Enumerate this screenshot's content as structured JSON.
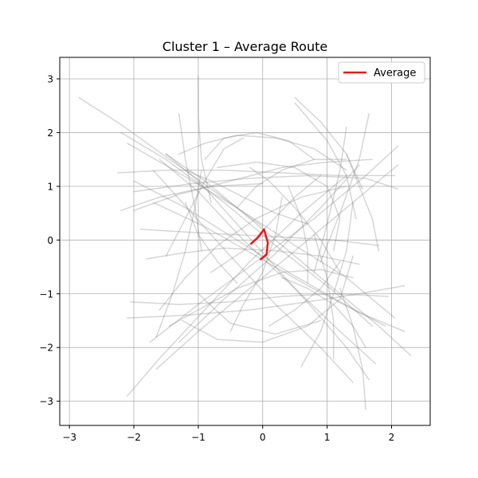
{
  "chart_data": {
    "type": "line",
    "title": "Cluster 1 – Average Route",
    "xlabel": "",
    "ylabel": "",
    "xlim": [
      -3.15,
      2.6
    ],
    "ylim": [
      -3.45,
      3.4
    ],
    "xticks": [
      -3,
      -2,
      -1,
      0,
      1,
      2
    ],
    "yticks": [
      -3,
      -2,
      -1,
      0,
      1,
      2,
      3
    ],
    "grid": true,
    "legend": {
      "placement": "top-right",
      "entries": [
        "Average"
      ]
    },
    "colors": {
      "routes": "#808080",
      "average": "#e41a1c",
      "grid": "#b0b0b0"
    },
    "series": [
      {
        "name": "Average",
        "points": [
          [
            -0.18,
            -0.07
          ],
          [
            -0.07,
            0.05
          ],
          [
            0.02,
            0.2
          ],
          [
            0.08,
            -0.05
          ],
          [
            0.06,
            -0.27
          ],
          [
            -0.03,
            -0.36
          ]
        ]
      }
    ],
    "routes": [
      [
        [
          -2.85,
          2.65
        ],
        [
          -2.2,
          2.15
        ],
        [
          -1.5,
          1.55
        ],
        [
          -0.8,
          0.95
        ],
        [
          0.0,
          0.25
        ]
      ],
      [
        [
          -2.2,
          2.0
        ],
        [
          -1.5,
          1.5
        ],
        [
          -0.6,
          0.7
        ],
        [
          0.3,
          -0.2
        ],
        [
          1.1,
          -0.95
        ],
        [
          1.7,
          -1.6
        ]
      ],
      [
        [
          -1.0,
          3.05
        ],
        [
          -1.0,
          2.3
        ],
        [
          -0.95,
          1.5
        ],
        [
          -0.8,
          0.7
        ]
      ],
      [
        [
          -1.3,
          2.35
        ],
        [
          -1.2,
          1.5
        ],
        [
          -1.05,
          0.6
        ],
        [
          -0.95,
          -0.2
        ]
      ],
      [
        [
          -2.1,
          1.8
        ],
        [
          -1.3,
          1.25
        ],
        [
          -0.4,
          0.6
        ],
        [
          0.5,
          -0.1
        ],
        [
          1.3,
          -0.7
        ],
        [
          2.05,
          -1.45
        ]
      ],
      [
        [
          -2.25,
          1.25
        ],
        [
          -1.5,
          1.3
        ],
        [
          -0.6,
          1.3
        ],
        [
          0.3,
          1.25
        ],
        [
          1.2,
          1.2
        ],
        [
          2.05,
          1.2
        ]
      ],
      [
        [
          -2.0,
          0.9
        ],
        [
          -1.1,
          1.05
        ],
        [
          -0.2,
          1.15
        ],
        [
          0.7,
          1.2
        ],
        [
          1.6,
          1.15
        ],
        [
          2.1,
          0.95
        ]
      ],
      [
        [
          -2.0,
          0.55
        ],
        [
          -1.3,
          0.85
        ],
        [
          -0.5,
          1.1
        ],
        [
          0.3,
          1.35
        ],
        [
          1.0,
          1.45
        ],
        [
          1.7,
          1.5
        ]
      ],
      [
        [
          -2.2,
          0.55
        ],
        [
          -1.6,
          0.8
        ],
        [
          -0.8,
          1.0
        ],
        [
          0.0,
          1.05
        ]
      ],
      [
        [
          -2.05,
          -1.15
        ],
        [
          -1.3,
          -1.2
        ],
        [
          -0.5,
          -1.15
        ],
        [
          0.3,
          -1.05
        ],
        [
          1.1,
          -1.0
        ],
        [
          1.95,
          -1.05
        ]
      ],
      [
        [
          -2.1,
          -1.45
        ],
        [
          -1.2,
          -1.4
        ],
        [
          -0.2,
          -1.3
        ],
        [
          0.7,
          -1.15
        ],
        [
          1.5,
          -1.0
        ],
        [
          2.2,
          -0.85
        ]
      ],
      [
        [
          -2.1,
          -2.9
        ],
        [
          -1.6,
          -2.2
        ],
        [
          -0.9,
          -1.3
        ],
        [
          -0.2,
          -0.4
        ],
        [
          0.6,
          0.5
        ],
        [
          1.3,
          1.2
        ]
      ],
      [
        [
          -1.65,
          -2.4
        ],
        [
          -1.0,
          -1.7
        ],
        [
          -0.2,
          -0.9
        ],
        [
          0.6,
          -0.1
        ],
        [
          1.3,
          0.6
        ],
        [
          2.1,
          1.4
        ]
      ],
      [
        [
          -1.75,
          -1.9
        ],
        [
          -1.0,
          -1.2
        ],
        [
          -0.1,
          -0.4
        ],
        [
          0.8,
          0.4
        ],
        [
          1.6,
          1.2
        ],
        [
          2.1,
          1.75
        ]
      ],
      [
        [
          -1.3,
          -1.9
        ],
        [
          -0.6,
          -1.1
        ],
        [
          0.2,
          -0.25
        ],
        [
          0.9,
          0.6
        ],
        [
          1.5,
          1.4
        ]
      ],
      [
        [
          0.5,
          2.65
        ],
        [
          0.9,
          2.2
        ],
        [
          1.3,
          1.6
        ],
        [
          1.55,
          0.95
        ]
      ],
      [
        [
          0.5,
          2.55
        ],
        [
          1.0,
          1.85
        ],
        [
          1.3,
          1.2
        ],
        [
          1.45,
          0.4
        ]
      ],
      [
        [
          1.65,
          2.35
        ],
        [
          1.5,
          1.5
        ],
        [
          1.2,
          0.5
        ],
        [
          0.9,
          -0.4
        ]
      ],
      [
        [
          1.3,
          2.1
        ],
        [
          1.2,
          1.3
        ],
        [
          1.0,
          0.3
        ],
        [
          0.8,
          -0.6
        ]
      ],
      [
        [
          1.6,
          -3.15
        ],
        [
          1.55,
          -2.4
        ],
        [
          1.4,
          -1.6
        ],
        [
          1.2,
          -0.9
        ]
      ],
      [
        [
          1.65,
          -2.6
        ],
        [
          1.3,
          -2.0
        ],
        [
          0.8,
          -1.3
        ],
        [
          0.2,
          -0.5
        ],
        [
          -0.4,
          0.3
        ],
        [
          -1.0,
          1.1
        ],
        [
          -1.5,
          1.6
        ]
      ],
      [
        [
          1.4,
          -2.65
        ],
        [
          0.9,
          -2.0
        ],
        [
          0.2,
          -1.2
        ],
        [
          -0.5,
          -0.3
        ],
        [
          -1.1,
          0.5
        ],
        [
          -1.7,
          1.3
        ]
      ],
      [
        [
          1.75,
          -2.3
        ],
        [
          1.2,
          -1.7
        ],
        [
          0.5,
          -0.9
        ],
        [
          -0.3,
          0.0
        ],
        [
          -1.0,
          0.9
        ],
        [
          -1.6,
          1.5
        ]
      ],
      [
        [
          0.6,
          -2.35
        ],
        [
          0.9,
          -1.7
        ],
        [
          1.1,
          -1.0
        ],
        [
          1.3,
          -0.2
        ],
        [
          1.4,
          0.7
        ]
      ],
      [
        [
          1.1,
          -2.2
        ],
        [
          1.1,
          -1.5
        ],
        [
          1.0,
          -0.7
        ],
        [
          0.8,
          0.1
        ]
      ],
      [
        [
          2.3,
          -2.15
        ],
        [
          1.8,
          -1.6
        ],
        [
          1.2,
          -1.0
        ],
        [
          0.5,
          -0.3
        ],
        [
          -0.2,
          0.4
        ],
        [
          -0.9,
          1.1
        ],
        [
          -1.5,
          1.6
        ]
      ],
      [
        [
          2.2,
          -1.7
        ],
        [
          1.5,
          -1.35
        ],
        [
          0.7,
          -0.85
        ],
        [
          -0.1,
          -0.3
        ],
        [
          -0.9,
          0.25
        ],
        [
          -1.7,
          0.7
        ]
      ],
      [
        [
          1.9,
          -1.6
        ],
        [
          1.2,
          -1.15
        ],
        [
          0.4,
          -0.6
        ],
        [
          -0.4,
          0.0
        ],
        [
          -1.2,
          0.6
        ],
        [
          -2.0,
          1.1
        ]
      ],
      [
        [
          -1.3,
          1.6
        ],
        [
          -0.9,
          1.8
        ],
        [
          -0.4,
          1.95
        ],
        [
          0.2,
          1.9
        ],
        [
          0.8,
          1.7
        ],
        [
          1.3,
          1.3
        ]
      ],
      [
        [
          -0.9,
          1.5
        ],
        [
          -0.6,
          1.9
        ],
        [
          -0.1,
          2.0
        ],
        [
          0.4,
          1.85
        ],
        [
          0.8,
          1.5
        ]
      ],
      [
        [
          -1.5,
          -0.3
        ],
        [
          -1.2,
          0.4
        ],
        [
          -0.9,
          1.1
        ],
        [
          -0.6,
          1.7
        ],
        [
          -0.3,
          1.9
        ]
      ],
      [
        [
          -1.25,
          -1.5
        ],
        [
          -0.7,
          -1.85
        ],
        [
          0.0,
          -1.9
        ],
        [
          0.7,
          -1.6
        ],
        [
          1.2,
          -1.1
        ],
        [
          1.4,
          -0.3
        ]
      ],
      [
        [
          -1.0,
          -1.0
        ],
        [
          -0.5,
          -1.55
        ],
        [
          0.2,
          -1.75
        ],
        [
          0.9,
          -1.5
        ]
      ],
      [
        [
          -0.5,
          -1.7
        ],
        [
          -0.3,
          -1.2
        ],
        [
          0.0,
          -0.6
        ],
        [
          0.2,
          0.1
        ],
        [
          0.3,
          0.8
        ]
      ],
      [
        [
          -0.7,
          1.35
        ],
        [
          -0.1,
          1.45
        ],
        [
          0.5,
          1.35
        ],
        [
          1.0,
          1.0
        ],
        [
          1.2,
          0.4
        ],
        [
          1.1,
          -0.2
        ]
      ],
      [
        [
          -1.8,
          -0.35
        ],
        [
          -1.3,
          -0.25
        ],
        [
          -0.6,
          -0.15
        ],
        [
          0.2,
          -0.2
        ],
        [
          0.9,
          -0.3
        ],
        [
          1.5,
          -0.45
        ]
      ],
      [
        [
          -1.9,
          0.2
        ],
        [
          -1.2,
          0.15
        ],
        [
          -0.4,
          0.1
        ],
        [
          0.4,
          0.05
        ],
        [
          1.1,
          0.0
        ],
        [
          1.8,
          -0.1
        ]
      ],
      [
        [
          -1.65,
          -1.8
        ],
        [
          -1.4,
          -1.0
        ],
        [
          -1.2,
          -0.2
        ],
        [
          -1.05,
          0.6
        ],
        [
          -0.95,
          1.3
        ]
      ],
      [
        [
          -1.45,
          -1.6
        ],
        [
          -1.0,
          -1.3
        ],
        [
          -0.4,
          -0.9
        ],
        [
          0.3,
          -0.6
        ],
        [
          0.9,
          -0.55
        ],
        [
          1.4,
          -0.7
        ]
      ],
      [
        [
          -1.6,
          -1.3
        ],
        [
          -1.2,
          -0.7
        ],
        [
          -0.7,
          -0.1
        ],
        [
          -0.1,
          0.4
        ],
        [
          0.6,
          0.8
        ],
        [
          1.3,
          1.0
        ]
      ],
      [
        [
          -0.2,
          1.35
        ],
        [
          0.1,
          1.1
        ],
        [
          0.5,
          0.6
        ],
        [
          0.9,
          0.0
        ],
        [
          1.2,
          -0.6
        ]
      ],
      [
        [
          0.9,
          1.2
        ],
        [
          0.5,
          0.8
        ],
        [
          0.1,
          0.3
        ],
        [
          -0.3,
          -0.2
        ],
        [
          -0.8,
          -0.6
        ]
      ],
      [
        [
          0.3,
          -0.7
        ],
        [
          0.7,
          -0.9
        ],
        [
          1.1,
          -1.2
        ],
        [
          1.4,
          -1.6
        ],
        [
          1.6,
          -2.0
        ]
      ],
      [
        [
          0.1,
          -1.6
        ],
        [
          0.5,
          -1.3
        ],
        [
          0.9,
          -0.9
        ],
        [
          1.2,
          -0.4
        ]
      ],
      [
        [
          -0.4,
          0.6
        ],
        [
          -0.1,
          1.0
        ],
        [
          0.3,
          1.3
        ],
        [
          0.8,
          1.5
        ],
        [
          1.3,
          1.5
        ]
      ],
      [
        [
          -1.2,
          1.3
        ],
        [
          -0.8,
          1.1
        ],
        [
          -0.3,
          0.8
        ],
        [
          0.2,
          0.5
        ],
        [
          0.7,
          0.3
        ]
      ],
      [
        [
          0.4,
          1.0
        ],
        [
          0.6,
          0.4
        ],
        [
          0.7,
          -0.2
        ],
        [
          0.7,
          -0.8
        ]
      ],
      [
        [
          -0.4,
          -0.8
        ],
        [
          -0.7,
          -0.4
        ],
        [
          -1.0,
          0.1
        ],
        [
          -1.2,
          0.7
        ]
      ],
      [
        [
          1.3,
          1.6
        ],
        [
          1.5,
          1.0
        ],
        [
          1.7,
          0.4
        ],
        [
          1.8,
          -0.2
        ]
      ]
    ]
  }
}
